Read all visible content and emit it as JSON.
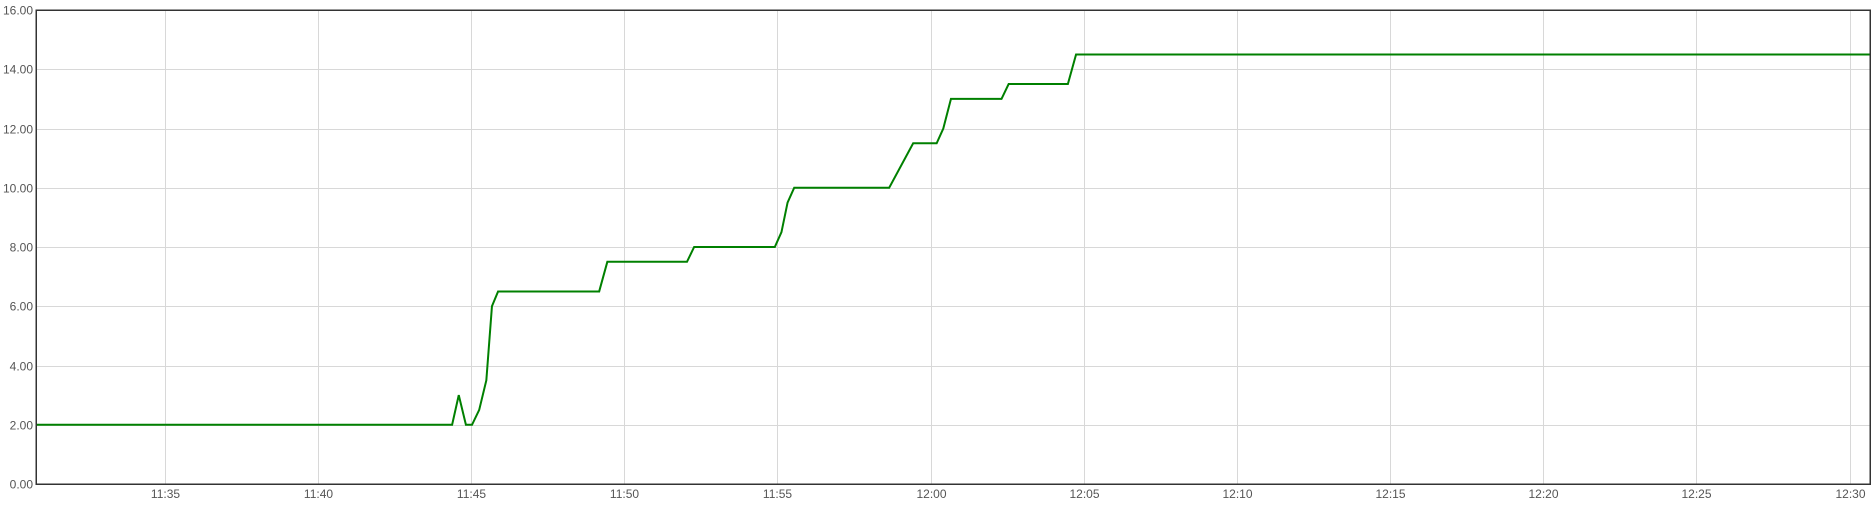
{
  "chart_data": {
    "type": "line",
    "title": "",
    "xlabel": "",
    "ylabel": "",
    "ylim": [
      0,
      16
    ],
    "xlim": [
      "11:30:48",
      "12:30:40"
    ],
    "grid": true,
    "legend": "none",
    "y_ticks": [
      "0.00",
      "2.00",
      "4.00",
      "6.00",
      "8.00",
      "10.00",
      "12.00",
      "14.00",
      "16.00"
    ],
    "x_ticks": [
      "11:35",
      "11:40",
      "11:45",
      "11:50",
      "11:55",
      "12:00",
      "12:05",
      "12:10",
      "12:15",
      "12:20",
      "12:25",
      "12:30"
    ],
    "series": [
      {
        "color": "#008000",
        "points": [
          {
            "x": "11:30:48",
            "y": 2.0
          },
          {
            "x": "11:44:23",
            "y": 2.0
          },
          {
            "x": "11:44:36",
            "y": 3.0
          },
          {
            "x": "11:44:50",
            "y": 2.0
          },
          {
            "x": "11:45:02",
            "y": 2.0
          },
          {
            "x": "11:45:16",
            "y": 2.5
          },
          {
            "x": "11:45:30",
            "y": 3.5
          },
          {
            "x": "11:45:41",
            "y": 6.0
          },
          {
            "x": "11:45:53",
            "y": 6.5
          },
          {
            "x": "11:49:11",
            "y": 6.5
          },
          {
            "x": "11:49:27",
            "y": 7.5
          },
          {
            "x": "11:52:03",
            "y": 7.5
          },
          {
            "x": "11:52:17",
            "y": 8.0
          },
          {
            "x": "11:54:55",
            "y": 8.0
          },
          {
            "x": "11:55:08",
            "y": 8.5
          },
          {
            "x": "11:55:20",
            "y": 9.5
          },
          {
            "x": "11:55:33",
            "y": 10.0
          },
          {
            "x": "11:58:39",
            "y": 10.0
          },
          {
            "x": "11:59:26",
            "y": 11.5
          },
          {
            "x": "12:00:12",
            "y": 11.5
          },
          {
            "x": "12:00:25",
            "y": 12.0
          },
          {
            "x": "12:00:40",
            "y": 13.0
          },
          {
            "x": "12:02:19",
            "y": 13.0
          },
          {
            "x": "12:02:33",
            "y": 13.5
          },
          {
            "x": "12:04:29",
            "y": 13.5
          },
          {
            "x": "12:04:45",
            "y": 14.5
          },
          {
            "x": "12:30:40",
            "y": 14.5
          }
        ]
      }
    ]
  }
}
